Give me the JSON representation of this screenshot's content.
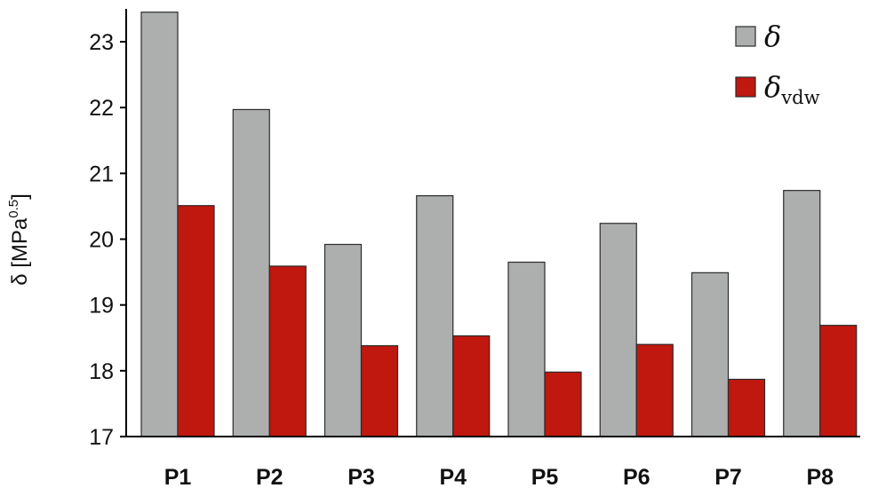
{
  "chart_data": {
    "type": "bar",
    "categories": [
      "P1",
      "P2",
      "P3",
      "P4",
      "P5",
      "P6",
      "P7",
      "P8"
    ],
    "series": [
      {
        "name": "δ",
        "color": "#adafaf",
        "values": [
          23.45,
          21.97,
          19.92,
          20.66,
          19.65,
          20.24,
          19.49,
          20.74
        ]
      },
      {
        "name": "δ",
        "subscript": "vdw",
        "color": "#c0170f",
        "values": [
          20.51,
          19.59,
          18.38,
          18.53,
          17.98,
          18.4,
          17.87,
          18.69
        ]
      }
    ],
    "ylabel": {
      "main": "δ [MPa",
      "sup": "0.5",
      "close": "]"
    },
    "ylim": [
      17,
      23.5
    ],
    "yticks": [
      17,
      18,
      19,
      20,
      21,
      22,
      23
    ],
    "grid": false,
    "legend": "top-right"
  }
}
